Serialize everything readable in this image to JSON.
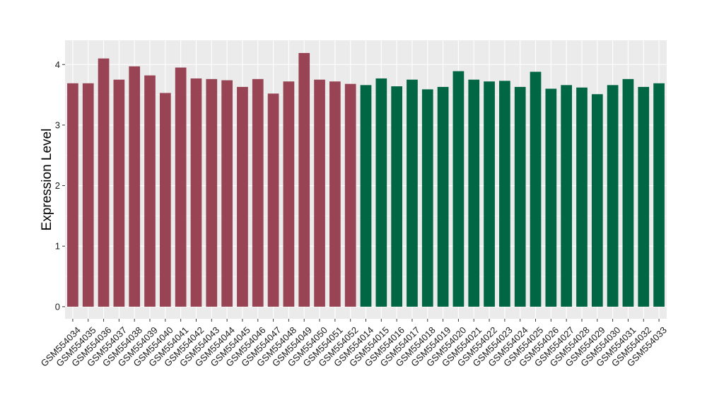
{
  "chart_data": {
    "type": "bar",
    "title": "",
    "xlabel": "",
    "ylabel": "Expression Level",
    "ylim": [
      -0.2,
      4.4
    ],
    "yticks": [
      0,
      1,
      2,
      3,
      4
    ],
    "grid": true,
    "legend": "none",
    "categories": [
      "GSM554034",
      "GSM554035",
      "GSM554036",
      "GSM554037",
      "GSM554038",
      "GSM554039",
      "GSM554040",
      "GSM554041",
      "GSM554042",
      "GSM554043",
      "GSM554044",
      "GSM554045",
      "GSM554046",
      "GSM554047",
      "GSM554048",
      "GSM554049",
      "GSM554050",
      "GSM554051",
      "GSM554052",
      "GSM554014",
      "GSM554015",
      "GSM554016",
      "GSM554017",
      "GSM554018",
      "GSM554019",
      "GSM554020",
      "GSM554021",
      "GSM554022",
      "GSM554023",
      "GSM554024",
      "GSM554025",
      "GSM554026",
      "GSM554027",
      "GSM554028",
      "GSM554029",
      "GSM554030",
      "GSM554031",
      "GSM554032",
      "GSM554033"
    ],
    "series": [
      {
        "color": "#994455",
        "values": [
          3.69,
          3.69,
          4.1,
          3.75,
          3.97,
          3.82,
          3.53,
          3.95,
          3.77,
          3.76,
          3.74,
          3.63,
          3.76,
          3.52,
          3.72,
          4.19,
          3.75,
          3.72,
          3.68,
          null,
          null,
          null,
          null,
          null,
          null,
          null,
          null,
          null,
          null,
          null,
          null,
          null,
          null,
          null,
          null,
          null,
          null,
          null,
          null
        ]
      },
      {
        "color": "#006644",
        "values": [
          null,
          null,
          null,
          null,
          null,
          null,
          null,
          null,
          null,
          null,
          null,
          null,
          null,
          null,
          null,
          null,
          null,
          null,
          null,
          3.66,
          3.77,
          3.64,
          3.75,
          3.59,
          3.63,
          3.89,
          3.75,
          3.72,
          3.73,
          3.63,
          3.88,
          3.6,
          3.66,
          3.62,
          3.51,
          3.66,
          3.76,
          3.63,
          3.69
        ]
      }
    ],
    "panel_background": "#ebebeb",
    "grid_color": "#ffffff"
  }
}
